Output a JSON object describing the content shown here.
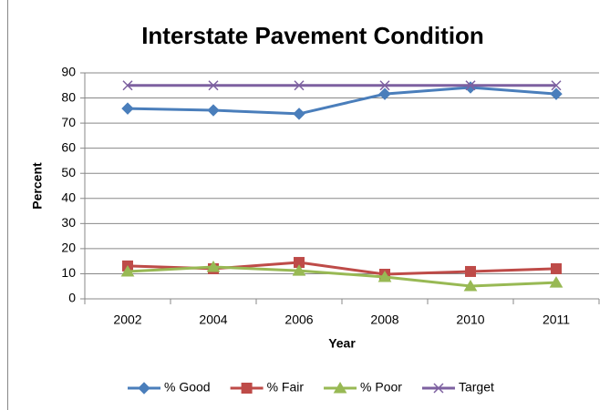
{
  "chart_data": {
    "type": "line",
    "title": "Interstate Pavement Condition",
    "y_label": "Percent",
    "x_label": "Year",
    "categories": [
      "2002",
      "2004",
      "2006",
      "2008",
      "2010",
      "2011"
    ],
    "series": [
      {
        "name": "% Good",
        "color": "#4a7ebb",
        "marker": "diamond",
        "values": [
          75.8,
          75.1,
          73.7,
          81.6,
          84.2,
          81.6
        ]
      },
      {
        "name": "% Fair",
        "color": "#be4b48",
        "marker": "square",
        "values": [
          13.1,
          12.0,
          14.5,
          9.8,
          10.9,
          12.0
        ]
      },
      {
        "name": "% Poor",
        "color": "#98b954",
        "marker": "triangle",
        "values": [
          10.9,
          12.7,
          11.2,
          8.7,
          5.1,
          6.5
        ]
      },
      {
        "name": "Target",
        "color": "#7d60a0",
        "marker": "x",
        "values": [
          85,
          85,
          85,
          85,
          85,
          85
        ]
      }
    ],
    "ylim": [
      0,
      90
    ],
    "yticks": [
      0,
      10,
      20,
      30,
      40,
      50,
      60,
      70,
      80,
      90
    ],
    "grid": true,
    "legend": "bottom"
  }
}
